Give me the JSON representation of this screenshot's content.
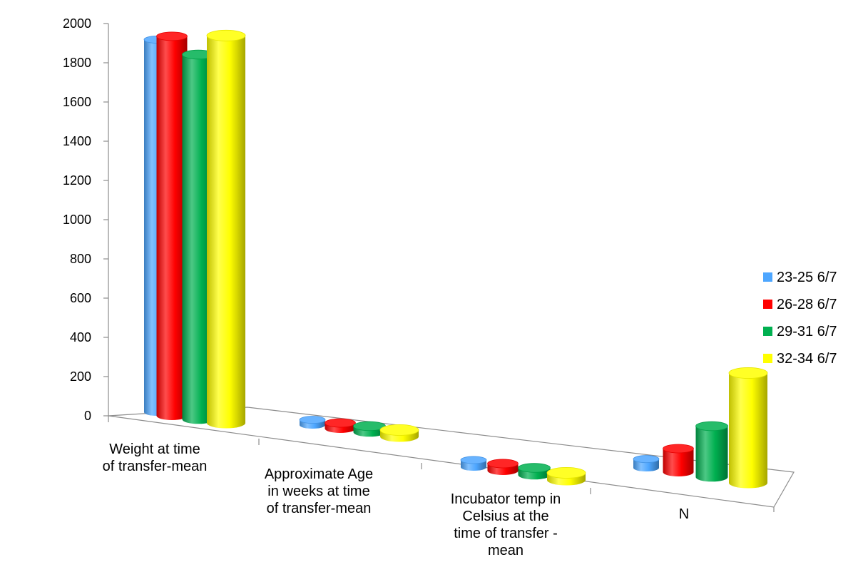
{
  "chart_data": {
    "type": "bar",
    "style": "3d-cylinder",
    "categories": [
      [
        "Weight at time",
        "of transfer-mean"
      ],
      [
        "Approximate Age",
        "in weeks at  time",
        "of transfer-mean"
      ],
      [
        "Incubator temp in",
        "Celsius at the",
        "time of transfer -",
        "mean"
      ],
      [
        "N"
      ]
    ],
    "series": [
      {
        "name": "23-25 6/7",
        "color": "#4da6ff",
        "values": [
          1900,
          27,
          36.5,
          45
        ]
      },
      {
        "name": "26-28 6/7",
        "color": "#ff0000",
        "values": [
          1935,
          29,
          36.5,
          120
        ]
      },
      {
        "name": "29-31 6/7",
        "color": "#00b050",
        "values": [
          1860,
          31,
          36.5,
          260
        ]
      },
      {
        "name": "32-34 6/7",
        "color": "#ffff00",
        "values": [
          1975,
          33,
          36.5,
          560
        ]
      }
    ],
    "ylim": [
      0,
      2000
    ],
    "yticks": [
      0,
      200,
      400,
      600,
      800,
      1000,
      1200,
      1400,
      1600,
      1800,
      2000
    ],
    "legend_position": "right",
    "gridlines": false
  }
}
